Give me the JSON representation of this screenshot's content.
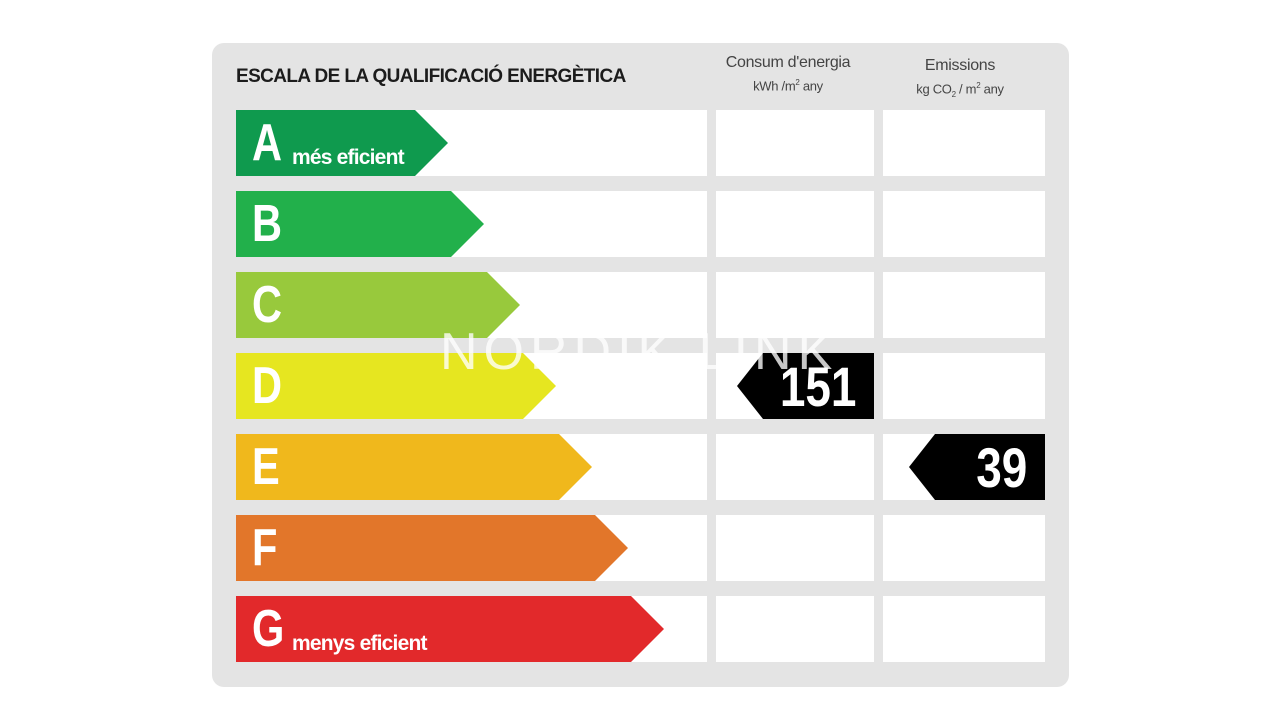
{
  "title": "ESCALA DE LA QUALIFICACIÓ ENERGÈTICA",
  "columns": {
    "consumption": {
      "label": "Consum d'energia",
      "unit_pre": "kWh /m",
      "unit_sup": "2",
      "unit_post": " any"
    },
    "emissions": {
      "label": "Emissions",
      "unit_pre": "kg CO",
      "unit_sub": "2",
      "unit_mid": " / m",
      "unit_sup": "2",
      "unit_post": " any"
    }
  },
  "ratings": [
    {
      "letter": "A",
      "sublabel": "més eficient",
      "color": "#0f9a4e"
    },
    {
      "letter": "B",
      "sublabel": "",
      "color": "#22b04b"
    },
    {
      "letter": "C",
      "sublabel": "",
      "color": "#98c93c"
    },
    {
      "letter": "D",
      "sublabel": "",
      "color": "#e6e620"
    },
    {
      "letter": "E",
      "sublabel": "",
      "color": "#f0b81c"
    },
    {
      "letter": "F",
      "sublabel": "",
      "color": "#e2762a"
    },
    {
      "letter": "G",
      "sublabel": "menys eficient",
      "color": "#e2292b"
    }
  ],
  "results": {
    "consumption": {
      "value": "151",
      "rating": "D"
    },
    "emissions": {
      "value": "39",
      "rating": "E"
    }
  },
  "watermark": "NORDIK LINK"
}
